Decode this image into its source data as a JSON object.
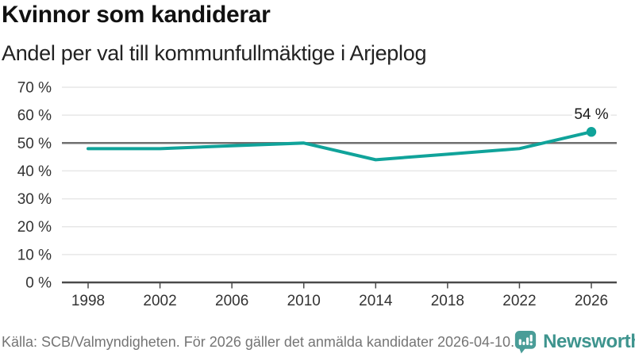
{
  "header": {
    "title": "Kvinnor som kandiderar",
    "subtitle": "Andel per val till kommunfullmäktige i Arjeplog"
  },
  "footer": {
    "source": "Källa: SCB/Valmyndigheten. För 2026 gäller det anmälda kandidater 2026-04-10.",
    "logo_text": "Newsworthy",
    "logo_icon": "newsworthy-speech-bubble-bar-chart-icon"
  },
  "colors": {
    "line": "#10a39a",
    "point": "#10a39a",
    "reference_line": "#707070",
    "axis_line": "#4a4a4a",
    "gridline": "#e7e7e7",
    "axis_text": "#333333",
    "title_text": "#111111",
    "muted_text": "#757575",
    "brand_teal": "#4a9d98",
    "brand_text": "#3e948e"
  },
  "chart_data": {
    "type": "line",
    "title": "Kvinnor som kandiderar",
    "subtitle": "Andel per val till kommunfullmäktige i Arjeplog",
    "categories": [
      "1998",
      "2002",
      "2006",
      "2010",
      "2014",
      "2018",
      "2022",
      "2026"
    ],
    "values": [
      48,
      48,
      49,
      50,
      44,
      46,
      48,
      54
    ],
    "unit": "%",
    "ylim": [
      0,
      70
    ],
    "ytick_step": 10,
    "ytick_labels": [
      "0 %",
      "10 %",
      "20 %",
      "30 %",
      "40 %",
      "50 %",
      "60 %",
      "70 %"
    ],
    "xtick_labels": [
      "1998",
      "2002",
      "2006",
      "2010",
      "2014",
      "2018",
      "2022",
      "2026"
    ],
    "reference_line": 50,
    "end_point_label": "54 %",
    "grid": true,
    "legend": false,
    "xlabel": "",
    "ylabel": ""
  }
}
